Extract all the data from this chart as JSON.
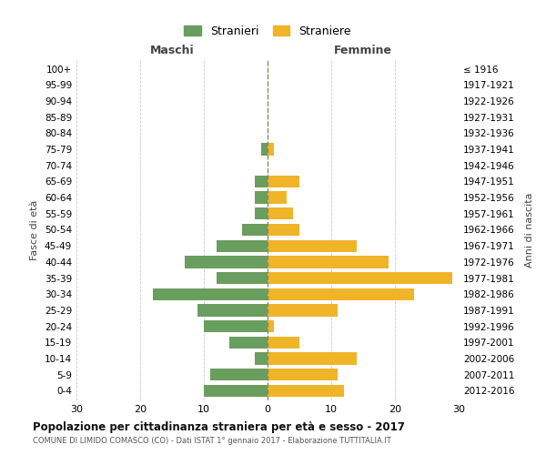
{
  "age_groups": [
    "100+",
    "95-99",
    "90-94",
    "85-89",
    "80-84",
    "75-79",
    "70-74",
    "65-69",
    "60-64",
    "55-59",
    "50-54",
    "45-49",
    "40-44",
    "35-39",
    "30-34",
    "25-29",
    "20-24",
    "15-19",
    "10-14",
    "5-9",
    "0-4"
  ],
  "birth_years": [
    "≤ 1916",
    "1917-1921",
    "1922-1926",
    "1927-1931",
    "1932-1936",
    "1937-1941",
    "1942-1946",
    "1947-1951",
    "1952-1956",
    "1957-1961",
    "1962-1966",
    "1967-1971",
    "1972-1976",
    "1977-1981",
    "1982-1986",
    "1987-1991",
    "1992-1996",
    "1997-2001",
    "2002-2006",
    "2007-2011",
    "2012-2016"
  ],
  "males": [
    0,
    0,
    0,
    0,
    0,
    1,
    0,
    2,
    2,
    2,
    4,
    8,
    13,
    8,
    18,
    11,
    10,
    6,
    2,
    9,
    10
  ],
  "females": [
    0,
    0,
    0,
    0,
    0,
    1,
    0,
    5,
    3,
    4,
    5,
    14,
    19,
    29,
    23,
    11,
    1,
    5,
    14,
    11,
    12
  ],
  "male_color": "#6a9e5e",
  "female_color": "#f0b429",
  "title_main": "Popolazione per cittadinanza straniera per età e sesso - 2017",
  "title_sub": "COMUNE DI LIMIDO COMASCO (CO) - Dati ISTAT 1° gennaio 2017 - Elaborazione TUTTITALIA.IT",
  "xlabel_left": "Maschi",
  "xlabel_right": "Femmine",
  "ylabel_left": "Fasce di età",
  "ylabel_right": "Anni di nascita",
  "legend_male": "Stranieri",
  "legend_female": "Straniere",
  "xlim": 30,
  "bg_color": "#ffffff",
  "grid_color": "#cccccc"
}
